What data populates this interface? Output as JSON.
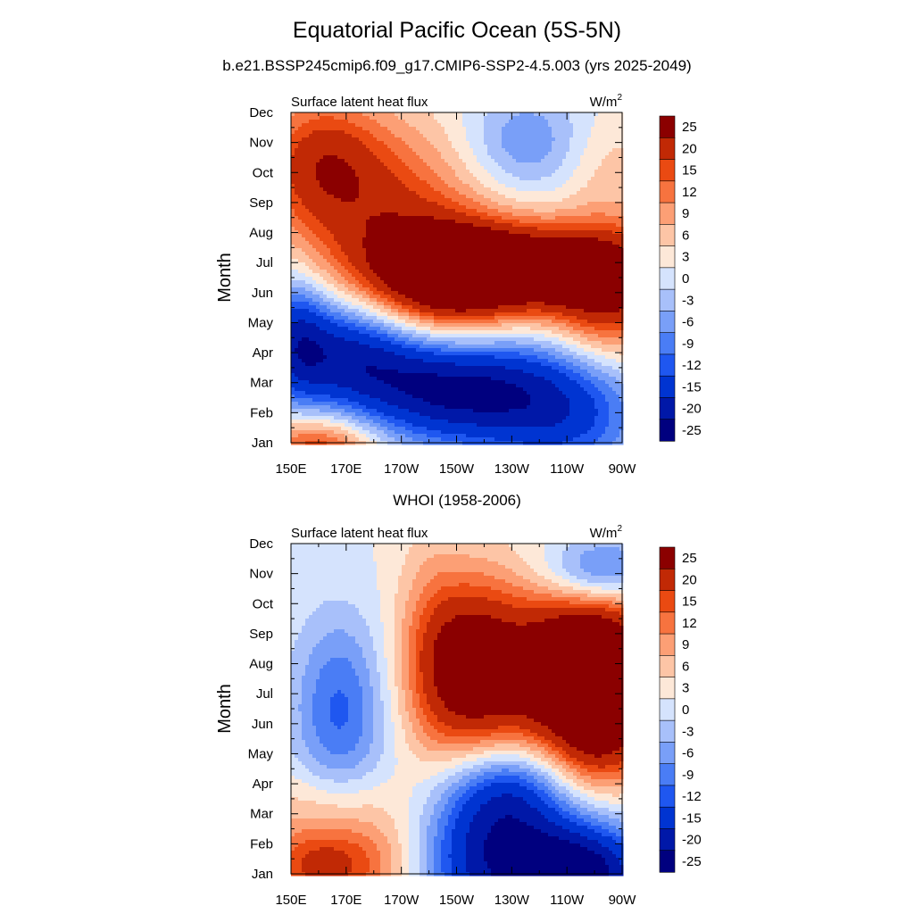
{
  "page": {
    "title": "Equatorial Pacific Ocean (5S-5N)",
    "subtitle": "b.e21.BSSP245cmip6.f09_g17.CMIP6-SSP2-4.5.003 (yrs 2025-2049)"
  },
  "chart_data": [
    {
      "type": "heatmap",
      "title": "",
      "variable_label": "Surface latent heat flux",
      "units_base": "W/m",
      "units_exp": "2",
      "ylabel": "Month",
      "xlabel": "",
      "x_ticks": [
        "150E",
        "170E",
        "170W",
        "150W",
        "130W",
        "110W",
        "90W"
      ],
      "x_range_deg_east": [
        150,
        270
      ],
      "y_ticks": [
        "Jan",
        "Feb",
        "Mar",
        "Apr",
        "May",
        "Jun",
        "Jul",
        "Aug",
        "Sep",
        "Oct",
        "Nov",
        "Dec"
      ],
      "colorbar_labels": [
        "25",
        "20",
        "15",
        "12",
        "9",
        "6",
        "3",
        "0",
        "-3",
        "-6",
        "-9",
        "-12",
        "-15",
        "-20",
        "-25"
      ],
      "features": [
        {
          "lon": 230,
          "month": 6.8,
          "value": 28,
          "sx": 30,
          "sy": 1.0
        },
        {
          "lon": 205,
          "month": 6.2,
          "value": 18,
          "sx": 20,
          "sy": 1.6
        },
        {
          "lon": 265,
          "month": 6.0,
          "value": 18,
          "sx": 15,
          "sy": 1.6
        },
        {
          "lon": 180,
          "month": 9.0,
          "value": 14,
          "sx": 25,
          "sy": 2.0
        },
        {
          "lon": 160,
          "month": 10.5,
          "value": 12,
          "sx": 15,
          "sy": 1.5
        },
        {
          "lon": 210,
          "month": 2.8,
          "value": -26,
          "sx": 25,
          "sy": 1.3
        },
        {
          "lon": 170,
          "month": 4.0,
          "value": -20,
          "sx": 20,
          "sy": 1.3
        },
        {
          "lon": 250,
          "month": 2.0,
          "value": -15,
          "sx": 20,
          "sy": 1.5
        },
        {
          "lon": 152,
          "month": 4.6,
          "value": -12,
          "sx": 8,
          "sy": 1.5
        },
        {
          "lon": 160,
          "month": 0.8,
          "value": 16,
          "sx": 15,
          "sy": 0.8
        },
        {
          "lon": 235,
          "month": 11.0,
          "value": -9,
          "sx": 15,
          "sy": 1.2
        },
        {
          "lon": 265,
          "month": 10.3,
          "value": 4,
          "sx": 12,
          "sy": 1.2
        }
      ]
    },
    {
      "type": "heatmap",
      "title": "WHOI (1958-2006)",
      "variable_label": "Surface latent heat flux",
      "units_base": "W/m",
      "units_exp": "2",
      "ylabel": "Month",
      "xlabel": "",
      "x_ticks": [
        "150E",
        "170E",
        "170W",
        "150W",
        "130W",
        "110W",
        "90W"
      ],
      "x_range_deg_east": [
        150,
        270
      ],
      "y_ticks": [
        "Jan",
        "Feb",
        "Mar",
        "Apr",
        "May",
        "Jun",
        "Jul",
        "Aug",
        "Sep",
        "Oct",
        "Nov",
        "Dec"
      ],
      "colorbar_labels": [
        "25",
        "20",
        "15",
        "12",
        "9",
        "6",
        "3",
        "0",
        "-3",
        "-6",
        "-9",
        "-12",
        "-15",
        "-20",
        "-25"
      ],
      "features": [
        {
          "lon": 235,
          "month": 7.6,
          "value": 20,
          "sx": 25,
          "sy": 2.2
        },
        {
          "lon": 262,
          "month": 8.0,
          "value": 24,
          "sx": 15,
          "sy": 2.0
        },
        {
          "lon": 213,
          "month": 8.0,
          "value": 14,
          "sx": 12,
          "sy": 2.0
        },
        {
          "lon": 262,
          "month": 5.5,
          "value": 10,
          "sx": 12,
          "sy": 1.2
        },
        {
          "lon": 220,
          "month": 1.5,
          "value": -20,
          "sx": 20,
          "sy": 1.8
        },
        {
          "lon": 255,
          "month": 1.0,
          "value": -28,
          "sx": 18,
          "sy": 1.2
        },
        {
          "lon": 230,
          "month": 3.8,
          "value": -15,
          "sx": 15,
          "sy": 1.2
        },
        {
          "lon": 168,
          "month": 6.5,
          "value": -13,
          "sx": 12,
          "sy": 2.2
        },
        {
          "lon": 160,
          "month": 1.3,
          "value": 16,
          "sx": 15,
          "sy": 1.0
        },
        {
          "lon": 185,
          "month": 1.5,
          "value": 8,
          "sx": 15,
          "sy": 1.5
        },
        {
          "lon": 160,
          "month": 3.5,
          "value": 4,
          "sx": 20,
          "sy": 0.8
        },
        {
          "lon": 262,
          "month": 11.0,
          "value": -18,
          "sx": 15,
          "sy": 0.9
        },
        {
          "lon": 200,
          "month": 9.0,
          "value": 4,
          "sx": 8,
          "sy": 3.0
        }
      ]
    }
  ],
  "colors": {
    "palette_bottom_to_top": [
      "#00007f",
      "#0018a8",
      "#0034d1",
      "#1f57f0",
      "#4a7df5",
      "#799ff8",
      "#a8c0fa",
      "#d5e3fd",
      "#fde8d8",
      "#fdc5a6",
      "#fc9f75",
      "#f7733f",
      "#ea4a12",
      "#c12905",
      "#8b0000"
    ]
  }
}
